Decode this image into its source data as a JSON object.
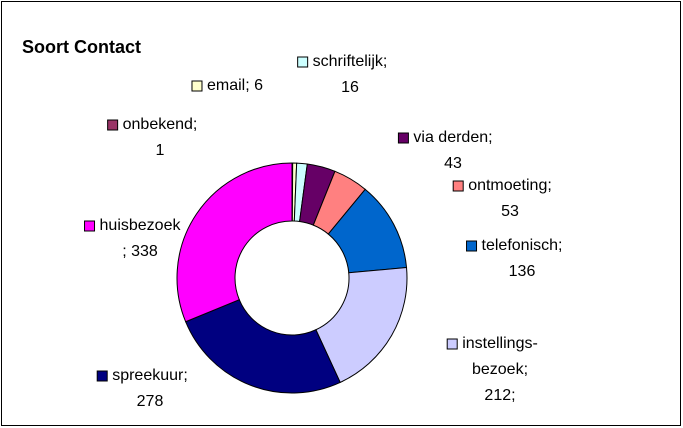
{
  "chart_data": {
    "type": "pie",
    "title": "Soort Contact",
    "donut": true,
    "values": [
      1,
      6,
      16,
      43,
      53,
      136,
      212,
      278,
      338
    ],
    "value_labels": [
      "onbekend;\n1",
      "email; 6",
      "schriftelijk;\n16",
      "via derden;\n43",
      "ontmoeting;\n53",
      "telefonisch;\n136",
      "instellings-\nbezoek;\n212;",
      "spreekuur;\n278",
      "huisbezoek\n; 338"
    ],
    "colors": [
      "#993366",
      "#ffffcc",
      "#ccffff",
      "#660066",
      "#ff8080",
      "#0066cc",
      "#ccccff",
      "#000080",
      "#ff00ff"
    ]
  }
}
